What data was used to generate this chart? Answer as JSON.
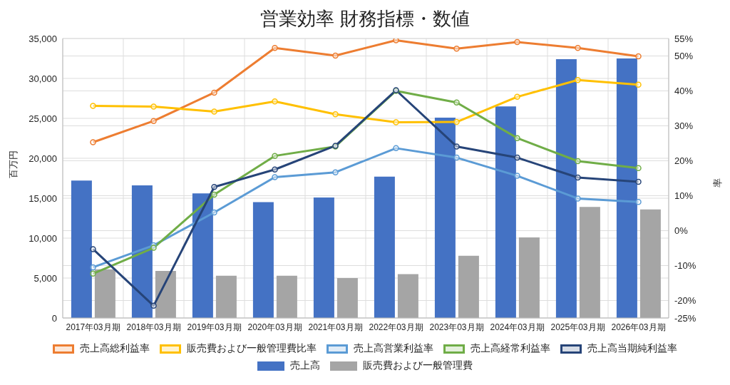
{
  "chart_data": {
    "type": "bar",
    "title": "営業効率 財務指標・数値",
    "ylabel": "百万円",
    "y2label": "率",
    "categories": [
      "2017年03月期",
      "2018年03月期",
      "2019年03月期",
      "2020年03月期",
      "2021年03月期",
      "2022年03月期",
      "2023年03月期",
      "2024年03月期",
      "2025年03月期",
      "2026年03月期"
    ],
    "series": [
      {
        "name": "売上高総利益率",
        "type": "line",
        "axis": "y2",
        "color": "#ed7d31",
        "values": [
          25.3,
          31.4,
          39.5,
          52.3,
          50.1,
          54.5,
          52.1,
          54.0,
          52.3,
          49.9
        ]
      },
      {
        "name": "販売費および一般管理費比率",
        "type": "line",
        "axis": "y2",
        "color": "#ffc000",
        "values": [
          35.7,
          35.5,
          34.1,
          37.0,
          33.3,
          31.0,
          31.1,
          38.3,
          43.1,
          41.8
        ]
      },
      {
        "name": "売上高営業利益率",
        "type": "line",
        "axis": "y2",
        "color": "#5b9bd5",
        "values": [
          -10.5,
          -4.2,
          5.2,
          15.3,
          16.7,
          23.6,
          20.9,
          15.7,
          9.2,
          8.2
        ]
      },
      {
        "name": "売上高経常利益率",
        "type": "line",
        "axis": "y2",
        "color": "#70ad47",
        "values": [
          -12.3,
          -4.9,
          10.3,
          21.4,
          24.1,
          40.0,
          36.7,
          26.5,
          19.9,
          17.9
        ]
      },
      {
        "name": "売上高当期純利益率",
        "type": "line",
        "axis": "y2",
        "color": "#264478",
        "values": [
          -5.3,
          -21.5,
          12.5,
          17.5,
          24.3,
          40.2,
          24.1,
          20.9,
          15.2,
          14.0
        ]
      },
      {
        "name": "売上高",
        "type": "bar",
        "color": "#4472c4",
        "values": [
          17200,
          16600,
          15600,
          14500,
          15100,
          17700,
          25100,
          26500,
          32400,
          32500
        ]
      },
      {
        "name": "販売費および一般管理費",
        "type": "bar",
        "color": "#a5a5a5",
        "values": [
          6100,
          5900,
          5300,
          5300,
          5000,
          5500,
          7800,
          10100,
          13900,
          13600
        ]
      }
    ],
    "ylim": [
      0,
      35000
    ],
    "yticks": [
      0,
      {
        "value": 5000,
        "label": "5,000"
      },
      {
        "value": 10000,
        "label": "10,000"
      },
      {
        "value": 15000,
        "label": "15,000"
      },
      {
        "value": 20000,
        "label": "20,000"
      },
      {
        "value": 25000,
        "label": "25,000"
      },
      {
        "value": 30000,
        "label": "30,000"
      },
      {
        "value": 35000,
        "label": "35,000"
      }
    ],
    "y2lim": [
      -25,
      55
    ],
    "y2ticks": [
      {
        "value": -25,
        "label": "-25%"
      },
      {
        "value": -20,
        "label": "-20%"
      },
      {
        "value": -10,
        "label": "-10%"
      },
      {
        "value": 0,
        "label": "0%"
      },
      {
        "value": 10,
        "label": "10%"
      },
      {
        "value": 20,
        "label": "20%"
      },
      {
        "value": 30,
        "label": "30%"
      },
      {
        "value": 40,
        "label": "40%"
      },
      {
        "value": 50,
        "label": "50%"
      },
      {
        "value": 55,
        "label": "55%"
      }
    ],
    "grid": true,
    "legend": "bottom",
    "marker": "circle",
    "line_style": "solid"
  }
}
